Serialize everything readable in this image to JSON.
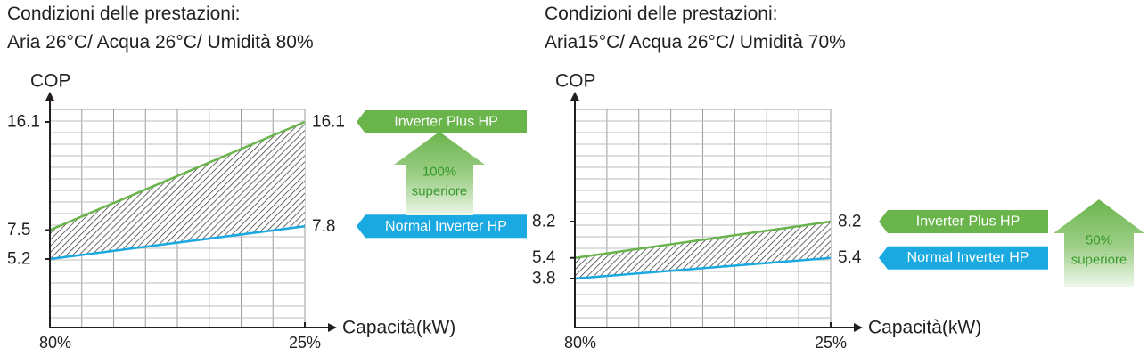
{
  "charts": [
    {
      "conditions_title": "Condizioni delle prestazioni:",
      "conditions_detail": "Aria 26°C/ Acqua 26°C/ Umidità 80%",
      "y_axis_label": "COP",
      "x_axis_label": "Capacità(kW)",
      "x_ticks": [
        "80%",
        "25%"
      ],
      "y_ticks": [
        "16.1",
        "7.5",
        "5.2"
      ],
      "inverter_plus": {
        "label": "Inverter Plus HP",
        "end_value_label": "16.1",
        "color": "#6ab44c",
        "values": [
          7.5,
          16.1
        ]
      },
      "normal_inverter": {
        "label": "Normal Inverter HP",
        "end_value_label": "7.8",
        "color": "#1ba9e1",
        "values": [
          5.2,
          7.8
        ]
      },
      "badge": {
        "line1": "100%",
        "line2": "superiore",
        "color": "#6ab44c"
      }
    },
    {
      "conditions_title": "Condizioni delle prestazioni:",
      "conditions_detail": "Aria15°C/ Acqua 26°C/ Umidità 70%",
      "y_axis_label": "COP",
      "x_axis_label": "Capacità(kW)",
      "x_ticks": [
        "80%",
        "25%"
      ],
      "y_ticks": [
        "8.2",
        "5.4",
        "3.8"
      ],
      "inverter_plus": {
        "label": "Inverter Plus HP",
        "end_value_label": "8.2",
        "color": "#6ab44c",
        "values": [
          5.4,
          8.2
        ]
      },
      "normal_inverter": {
        "label": "Normal Inverter HP",
        "end_value_label": "5.4",
        "color": "#1ba9e1",
        "values": [
          3.8,
          5.4
        ]
      },
      "badge": {
        "line1": "50%",
        "line2": "superiore",
        "color": "#6ab44c"
      }
    }
  ],
  "chart_data": [
    {
      "type": "area",
      "x": [
        "80%",
        "25%"
      ],
      "xlabel": "Capacità(kW)",
      "ylabel": "COP",
      "series": [
        {
          "name": "Inverter Plus HP",
          "values": [
            7.5,
            16.1
          ]
        },
        {
          "name": "Normal Inverter HP",
          "values": [
            5.2,
            7.8
          ]
        }
      ],
      "grid": true,
      "legend": "right"
    },
    {
      "type": "area",
      "x": [
        "80%",
        "25%"
      ],
      "xlabel": "Capacità(kW)",
      "ylabel": "COP",
      "series": [
        {
          "name": "Inverter Plus HP",
          "values": [
            5.4,
            8.2
          ]
        },
        {
          "name": "Normal Inverter HP",
          "values": [
            3.8,
            5.4
          ]
        }
      ],
      "grid": true,
      "legend": "right"
    }
  ]
}
